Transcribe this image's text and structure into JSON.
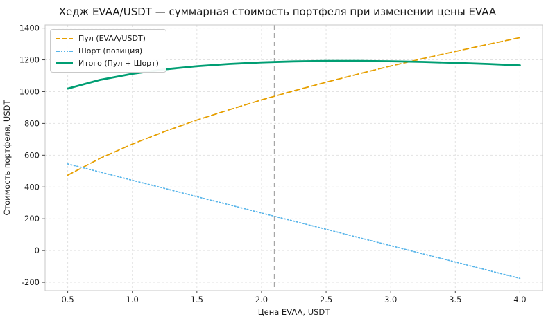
{
  "chart_data": {
    "type": "line",
    "title": "Хедж EVAA/USDT — суммарная стоимость портфеля при изменении цены EVAA",
    "xlabel": "Цена EVAA, USDT",
    "ylabel": "Стоимость портфеля, USDT",
    "x": [
      0.5,
      0.75,
      1.0,
      1.25,
      1.5,
      1.75,
      2.0,
      2.25,
      2.5,
      2.75,
      3.0,
      3.25,
      3.5,
      3.75,
      4.0
    ],
    "series": [
      {
        "name": "Пул (EVAA/USDT)",
        "color": "#E69F00",
        "style": "dashed",
        "width": 1.8,
        "values": [
          474,
          580,
          670,
          749,
          821,
          886,
          948,
          1005,
          1059,
          1111,
          1161,
          1208,
          1253,
          1297,
          1340
        ]
      },
      {
        "name": "Шорт (позиция)",
        "color": "#56B4E9",
        "style": "dotted",
        "width": 1.7,
        "values": [
          545,
          494,
          442,
          391,
          339,
          288,
          236,
          185,
          134,
          82,
          31,
          -21,
          -72,
          -124,
          -175
        ]
      },
      {
        "name": "Итого (Пул + Шорт)",
        "color": "#009E73",
        "style": "solid",
        "width": 2.8,
        "values": [
          1019,
          1074,
          1112,
          1140,
          1160,
          1174,
          1184,
          1190,
          1193,
          1193,
          1191,
          1187,
          1181,
          1174,
          1165
        ]
      }
    ],
    "xticks": [
      0.5,
      1.0,
      1.5,
      2.0,
      2.5,
      3.0,
      3.5,
      4.0
    ],
    "xtick_labels": [
      "0.5",
      "1.0",
      "1.5",
      "2.0",
      "2.5",
      "3.0",
      "3.5",
      "4.0"
    ],
    "yticks": [
      -200,
      0,
      200,
      400,
      600,
      800,
      1000,
      1200,
      1400
    ],
    "ytick_labels": [
      "-200",
      "0",
      "200",
      "400",
      "600",
      "800",
      "1000",
      "1200",
      "1400"
    ],
    "xlim": [
      0.325,
      4.175
    ],
    "ylim": [
      -252,
      1420
    ],
    "vline_x": 2.1,
    "grid": true,
    "legend_position": "upper left",
    "colors": {
      "grid": "#e2e2e2",
      "spine": "#c7c7c7",
      "tick": "#444444",
      "vline": "#a6a6a6"
    }
  }
}
